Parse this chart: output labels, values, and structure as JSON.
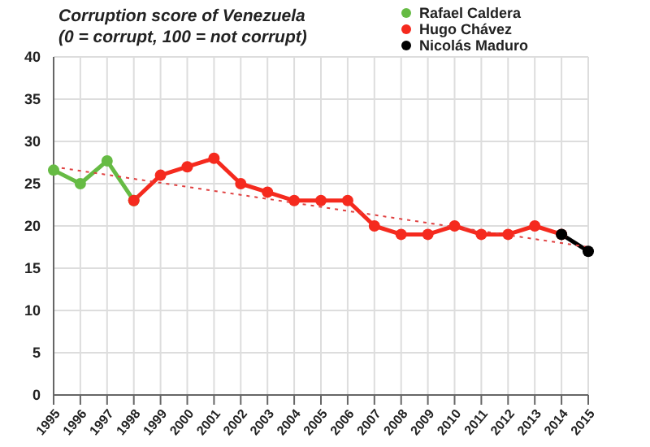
{
  "chart_data": {
    "type": "line",
    "title": "Corruption score of Venezuela",
    "subtitle": "(0 = corrupt, 100 = not corrupt)",
    "categories": [
      "1995",
      "1996",
      "1997",
      "1998",
      "1999",
      "2000",
      "2001",
      "2002",
      "2003",
      "2004",
      "2005",
      "2006",
      "2007",
      "2008",
      "2009",
      "2010",
      "2011",
      "2012",
      "2013",
      "2014",
      "2015"
    ],
    "series": [
      {
        "name": "Rafael Caldera",
        "color": "#66bb44",
        "values": [
          26.6,
          25,
          27.7,
          23,
          null,
          null,
          null,
          null,
          null,
          null,
          null,
          null,
          null,
          null,
          null,
          null,
          null,
          null,
          null,
          null,
          null
        ]
      },
      {
        "name": "Hugo Chávez",
        "color": "#f52a1e",
        "values": [
          null,
          null,
          null,
          23,
          26,
          27,
          28,
          25,
          24,
          23,
          23,
          23,
          20,
          19,
          19,
          20,
          19,
          19,
          20,
          19,
          null
        ]
      },
      {
        "name": "Nicolás Maduro",
        "color": "#000000",
        "values": [
          null,
          null,
          null,
          null,
          null,
          null,
          null,
          null,
          null,
          null,
          null,
          null,
          null,
          null,
          null,
          null,
          null,
          null,
          null,
          19,
          17
        ]
      },
      {
        "type": "line",
        "color": "#e04040",
        "line_style": "dotted",
        "marker": "none",
        "values": [
          27,
          null,
          null,
          null,
          null,
          null,
          null,
          null,
          null,
          null,
          null,
          null,
          null,
          null,
          null,
          null,
          null,
          null,
          null,
          null,
          17.5
        ]
      }
    ],
    "ylim": [
      0,
      40
    ],
    "yticks": [
      0,
      5,
      10,
      15,
      20,
      25,
      30,
      35,
      40
    ],
    "grid": true,
    "legend": "top right",
    "marker": "circle",
    "line_style": "solid"
  }
}
